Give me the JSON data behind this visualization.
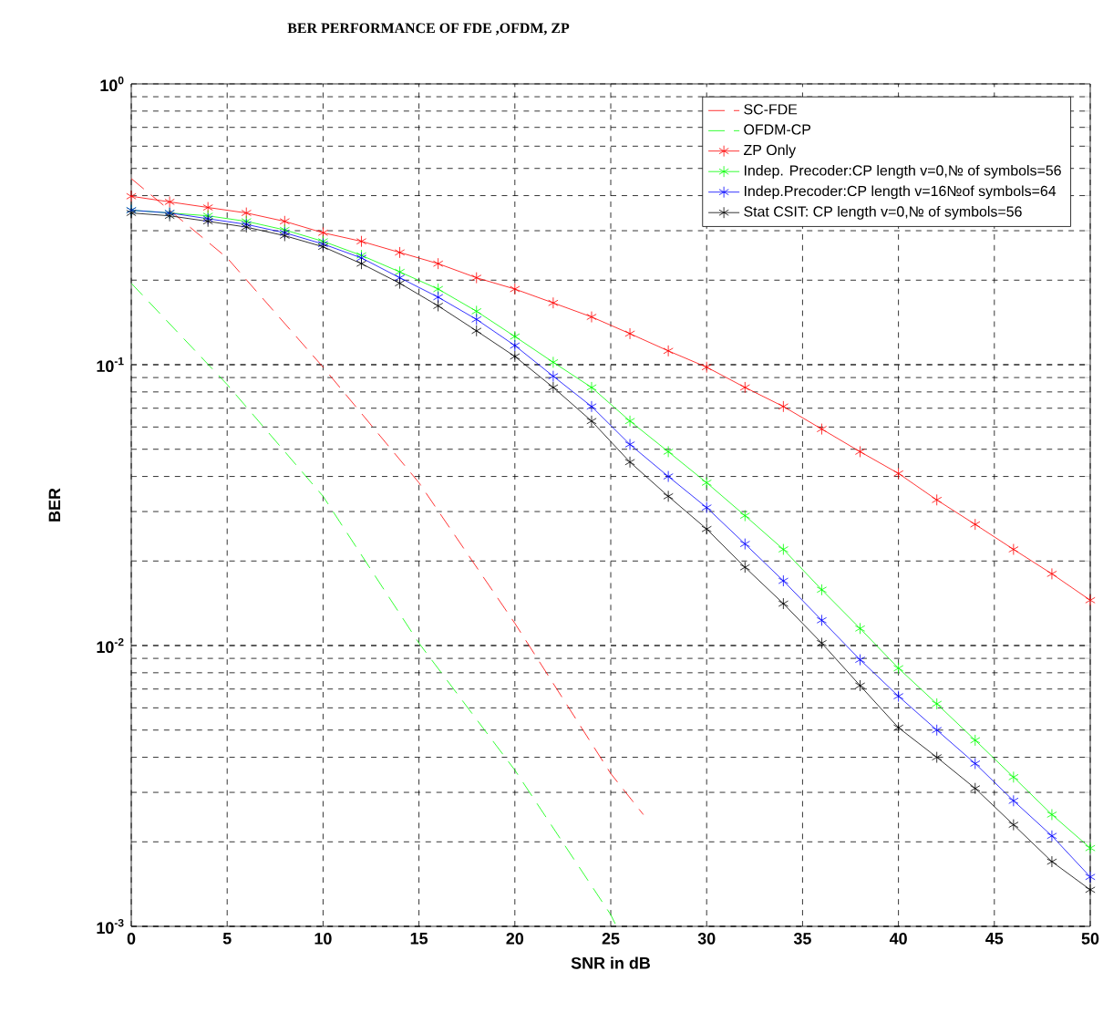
{
  "chart_data": {
    "type": "line",
    "title": "BER PERFORMANCE  OF FDE ,OFDM, ZP",
    "xlabel": "SNR in dB",
    "ylabel": "BER",
    "log": "y",
    "grid": true,
    "legend": "top right",
    "xlim": [
      0,
      50
    ],
    "xticks": [
      0,
      5,
      10,
      15,
      20,
      25,
      30,
      35,
      40,
      45,
      50
    ],
    "ylim": [
      0.001,
      1
    ],
    "yticks": [
      {
        "value": 0.001,
        "label": "10$^{-3}$"
      },
      {
        "value": 0.01,
        "label": "10$^{-2}$"
      },
      {
        "value": 0.1,
        "label": "10$^{-1}$"
      },
      {
        "value": 1,
        "label": "10$^{0}$"
      }
    ],
    "series": [
      {
        "name": "SC-FDE",
        "color": "#ff0000",
        "line_style": "dashed",
        "marker": "none",
        "x": [
          0,
          5,
          10,
          15,
          20,
          25,
          26.7
        ],
        "values": [
          0.46,
          0.24,
          0.098,
          0.038,
          0.012,
          0.0035,
          0.0025
        ]
      },
      {
        "name": "OFDM-CP",
        "color": "#00ff00",
        "line_style": "dashed",
        "marker": "none",
        "x": [
          0,
          5,
          10,
          15,
          20,
          25,
          25.3
        ],
        "values": [
          0.195,
          0.085,
          0.034,
          0.0102,
          0.0036,
          0.0011,
          0.001
        ]
      },
      {
        "name": "ZP Only",
        "color": "#ff0000",
        "line_style": "solid",
        "marker": "cross",
        "x": [
          0,
          2,
          4,
          6,
          8,
          10,
          12,
          14,
          16,
          18,
          20,
          22,
          24,
          26,
          28,
          30,
          32,
          34,
          36,
          38,
          40,
          42,
          44,
          46,
          48,
          50
        ],
        "values": [
          0.398,
          0.38,
          0.363,
          0.347,
          0.324,
          0.295,
          0.275,
          0.251,
          0.229,
          0.204,
          0.186,
          0.166,
          0.148,
          0.129,
          0.112,
          0.098,
          0.083,
          0.071,
          0.059,
          0.049,
          0.041,
          0.033,
          0.027,
          0.022,
          0.018,
          0.0145
        ]
      },
      {
        "name": "Indep. Precoder:CP length v=0,№ of symbols=56",
        "color": "#00ff00",
        "line_style": "solid",
        "marker": "cross",
        "x": [
          0,
          2,
          4,
          6,
          8,
          10,
          12,
          14,
          16,
          18,
          20,
          22,
          24,
          26,
          28,
          30,
          32,
          34,
          36,
          38,
          40,
          42,
          44,
          46,
          48,
          50
        ],
        "values": [
          0.355,
          0.347,
          0.339,
          0.324,
          0.302,
          0.275,
          0.245,
          0.214,
          0.186,
          0.155,
          0.126,
          0.102,
          0.083,
          0.063,
          0.049,
          0.038,
          0.029,
          0.022,
          0.0158,
          0.0115,
          0.0083,
          0.0062,
          0.0046,
          0.0034,
          0.0025,
          0.0019
        ]
      },
      {
        "name": "Indep.Precoder:CP length v=16№of symbols=64",
        "color": "#0000ff",
        "line_style": "solid",
        "marker": "cross",
        "x": [
          0,
          2,
          4,
          6,
          8,
          10,
          12,
          14,
          16,
          18,
          20,
          22,
          24,
          26,
          28,
          30,
          32,
          34,
          36,
          38,
          40,
          42,
          44,
          46,
          48,
          50
        ],
        "values": [
          0.355,
          0.347,
          0.331,
          0.316,
          0.295,
          0.269,
          0.24,
          0.204,
          0.174,
          0.145,
          0.117,
          0.091,
          0.071,
          0.052,
          0.04,
          0.031,
          0.023,
          0.017,
          0.0123,
          0.0089,
          0.0066,
          0.005,
          0.0038,
          0.0028,
          0.0021,
          0.0015
        ]
      },
      {
        "name": "Stat CSIT: CP length v=0,№ of symbols=56",
        "color": "#000000",
        "line_style": "solid",
        "marker": "cross",
        "x": [
          0,
          2,
          4,
          6,
          8,
          10,
          12,
          14,
          16,
          18,
          20,
          22,
          24,
          26,
          28,
          30,
          32,
          34,
          36,
          38,
          40,
          42,
          44,
          46,
          48,
          50
        ],
        "values": [
          0.347,
          0.339,
          0.324,
          0.309,
          0.288,
          0.263,
          0.229,
          0.195,
          0.162,
          0.132,
          0.107,
          0.083,
          0.063,
          0.045,
          0.034,
          0.026,
          0.019,
          0.0141,
          0.0102,
          0.0072,
          0.0051,
          0.004,
          0.0031,
          0.0023,
          0.0017,
          0.00135
        ]
      }
    ]
  }
}
